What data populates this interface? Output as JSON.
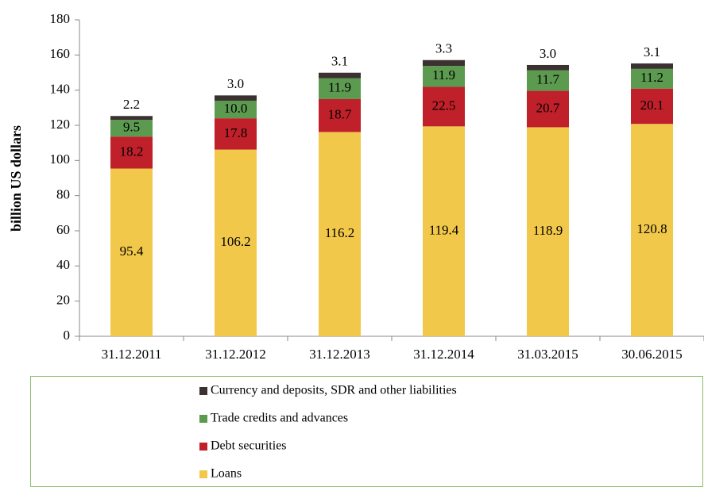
{
  "chart_data": {
    "type": "stacked_bar",
    "y_label": "billion  US dollars",
    "categories": [
      "31.12.2011",
      "31.12.2012",
      "31.12.2013",
      "31.12.2014",
      "31.03.2015",
      "30.06.2015"
    ],
    "series": [
      {
        "name": "Loans",
        "color": "#f2c84b",
        "label_color": "#000000",
        "values": [
          95.4,
          106.2,
          116.2,
          119.4,
          118.9,
          120.8
        ],
        "value_labels": [
          "95.4",
          "106.2",
          "116.2",
          "119.4",
          "118.9",
          "120.8"
        ]
      },
      {
        "name": "Debt securities",
        "color": "#c0202a",
        "label_color": "#ffffff",
        "values": [
          18.2,
          17.8,
          18.7,
          22.5,
          20.7,
          20.1
        ],
        "value_labels": [
          "18.2",
          "17.8",
          "18.7",
          "22.5",
          "20.7",
          "20.1"
        ]
      },
      {
        "name": "Trade credits and advances",
        "color": "#5b9a4f",
        "label_color": "#1a1a1a",
        "values": [
          9.5,
          10.0,
          11.9,
          11.9,
          11.7,
          11.2
        ],
        "value_labels": [
          "9.5",
          "10.0",
          "11.9",
          "11.9",
          "11.7",
          "11.2"
        ]
      },
      {
        "name": "Currency and deposits, SDR and other liabilities",
        "color": "#3b3130",
        "label_color": "#000000",
        "label_above": true,
        "values": [
          2.2,
          3.0,
          3.1,
          3.3,
          3.0,
          3.1
        ],
        "value_labels": [
          "2.2",
          "3.0",
          "3.1",
          "3.3",
          "3.0",
          "3.1"
        ]
      }
    ],
    "ylim": [
      0,
      180
    ],
    "yticks": [
      0,
      20,
      40,
      60,
      80,
      100,
      120,
      140,
      160,
      180
    ],
    "legend": "bottom"
  }
}
